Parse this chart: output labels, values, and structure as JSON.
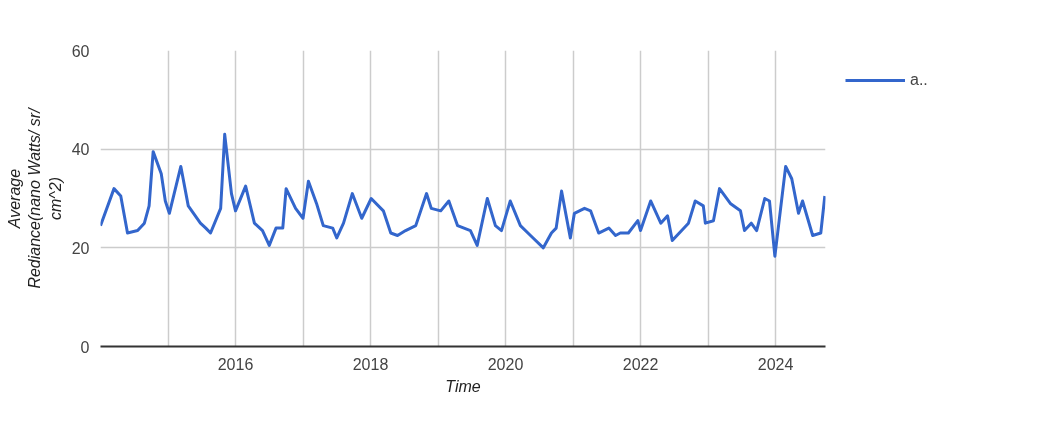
{
  "chart_data": {
    "type": "line",
    "xlabel": "Time",
    "ylabel": "Average\nRediance(nano Watts/ sr/\ncm^2)",
    "xlim": [
      2014,
      2024.74
    ],
    "xticks": [
      {
        "value": 2015,
        "label": null
      },
      2016,
      {
        "value": 2017,
        "label": null
      },
      2018,
      {
        "value": 2019,
        "label": null
      },
      2020,
      {
        "value": 2021,
        "label": null
      },
      2022,
      {
        "value": 2023,
        "label": null
      },
      2024
    ],
    "ylim": [
      0,
      60
    ],
    "yticks": [
      0,
      20,
      40,
      60
    ],
    "grid": true,
    "legend": "top right",
    "line_style": "solid",
    "marker": "none",
    "series": [
      {
        "name": "a..",
        "color": "#3366cc",
        "x": [
          2014.0,
          2014.2,
          2014.3,
          2014.4,
          2014.55,
          2014.65,
          2014.72,
          2014.78,
          2014.9,
          2014.96,
          2015.02,
          2015.19,
          2015.3,
          2015.48,
          2015.56,
          2015.63,
          2015.78,
          2015.84,
          2015.94,
          2016.0,
          2016.15,
          2016.28,
          2016.4,
          2016.5,
          2016.6,
          2016.7,
          2016.75,
          2016.89,
          2017.0,
          2017.08,
          2017.2,
          2017.3,
          2017.44,
          2017.5,
          2017.6,
          2017.73,
          2017.87,
          2018.01,
          2018.19,
          2018.3,
          2018.4,
          2018.52,
          2018.67,
          2018.83,
          2018.9,
          2019.04,
          2019.16,
          2019.29,
          2019.48,
          2019.58,
          2019.73,
          2019.85,
          2019.94,
          2020.07,
          2020.22,
          2020.37,
          2020.56,
          2020.68,
          2020.75,
          2020.83,
          2020.96,
          2021.02,
          2021.17,
          2021.26,
          2021.38,
          2021.53,
          2021.63,
          2021.7,
          2021.82,
          2021.96,
          2022.0,
          2022.15,
          2022.3,
          2022.4,
          2022.47,
          2022.71,
          2022.81,
          2022.93,
          2022.96,
          2023.08,
          2023.17,
          2023.33,
          2023.48,
          2023.54,
          2023.64,
          2023.72,
          2023.84,
          2023.91,
          2023.99,
          2024.15,
          2024.24,
          2024.34,
          2024.4,
          2024.55,
          2024.67,
          2024.73
        ],
        "values": [
          24.5,
          32,
          30.5,
          23,
          23.5,
          25,
          28.5,
          39.5,
          35,
          29.5,
          27,
          36.5,
          28.5,
          25,
          24,
          23,
          28,
          43,
          31,
          27.5,
          32.5,
          25,
          23.5,
          20.5,
          24,
          24,
          32,
          28,
          26,
          33.5,
          29,
          24.5,
          24,
          22,
          25,
          31,
          26,
          30,
          27.5,
          23,
          22.5,
          23.5,
          24.5,
          31,
          28,
          27.5,
          29.5,
          24.5,
          23.5,
          20.5,
          30,
          24.5,
          23.5,
          29.5,
          24.5,
          22.5,
          20,
          23,
          24,
          31.5,
          22,
          27,
          28,
          27.5,
          23,
          24,
          22.5,
          23,
          23,
          25.5,
          23.5,
          29.5,
          25,
          26.5,
          21.5,
          25,
          29.5,
          28.5,
          25,
          25.5,
          32,
          29,
          27.5,
          23.5,
          25,
          23.5,
          30,
          29.5,
          18.3,
          36.5,
          34,
          27,
          29.5,
          22.5,
          23,
          30.5
        ]
      }
    ]
  }
}
